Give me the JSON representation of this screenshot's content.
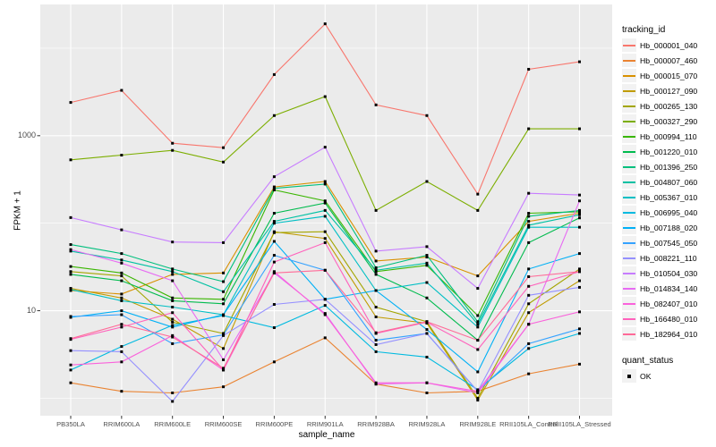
{
  "panel": {
    "fill": "#EBEBEB",
    "grid_color": "#FFFFFF",
    "tick_color": "#333333",
    "tick_text_color": "#4D4D4D"
  },
  "legend": {
    "tracking_title": "tracking_id",
    "quant_title": "quant_status",
    "quant_items": [
      {
        "label": "OK",
        "marker": "black-square",
        "color": "#000000"
      }
    ]
  },
  "chart_data": {
    "type": "line",
    "title": "",
    "xlabel": "sample_name",
    "ylabel": "FPKM + 1",
    "legend_position": "right",
    "grid": "on",
    "point_marker": {
      "shape": "square",
      "color": "#000000",
      "meaning": "quant_status = OK"
    },
    "x_categories": [
      "PB350LA",
      "RRIM600LA",
      "RRIM600LE",
      "RRIM600SE",
      "RRIM600PE",
      "RRIM901LA",
      "RRIM928BA",
      "RRIM928LA",
      "RRIM928LE",
      "RRII105LA_Control",
      "RRII105LA_Stressed"
    ],
    "y_scale": {
      "type": "log10",
      "breaks": [
        10,
        1000
      ],
      "break_labels": [
        "10",
        "1000"
      ],
      "minor_breaks": [
        1,
        100,
        10000
      ],
      "domain_log10": [
        -0.2,
        4.5
      ]
    },
    "series": [
      {
        "name": "Hb_000001_040",
        "color": "#F8766D",
        "values": [
          2400,
          3300,
          820,
          730,
          5000,
          19000,
          2250,
          1700,
          215,
          5750,
          7000
        ]
      },
      {
        "name": "Hb_000007_460",
        "color": "#EA8331",
        "values": [
          1.5,
          1.2,
          1.15,
          1.35,
          2.6,
          4.9,
          1.45,
          1.15,
          1.2,
          1.9,
          2.45
        ]
      },
      {
        "name": "Hb_000015_070",
        "color": "#D89000",
        "values": [
          17,
          15.5,
          26,
          27,
          260,
          300,
          37,
          41,
          25,
          105,
          130
        ]
      },
      {
        "name": "Hb_000127_090",
        "color": "#C09B00",
        "values": [
          18,
          14,
          8,
          3.7,
          80,
          67,
          8.5,
          7.2,
          0.95,
          9.5,
          22
        ]
      },
      {
        "name": "Hb_000265_130",
        "color": "#A3A500",
        "values": [
          28,
          25,
          7.4,
          5.5,
          78,
          80,
          11,
          7.5,
          1.0,
          12,
          30
        ]
      },
      {
        "name": "Hb_000327_290",
        "color": "#7CAE00",
        "values": [
          530,
          600,
          680,
          500,
          1700,
          2800,
          140,
          300,
          140,
          1200,
          1200
        ]
      },
      {
        "name": "Hb_000994_110",
        "color": "#39B600",
        "values": [
          32,
          27,
          14,
          13.5,
          240,
          180,
          28,
          33,
          8.8,
          130,
          135
        ]
      },
      {
        "name": "Hb_001220_010",
        "color": "#00BB4E",
        "values": [
          26,
          22,
          13,
          12,
          130,
          170,
          26,
          14,
          4.6,
          60,
          115
        ]
      },
      {
        "name": "Hb_001396_250",
        "color": "#00BF7D",
        "values": [
          57,
          45,
          30,
          21.5,
          250,
          280,
          31,
          43,
          7.5,
          120,
          140
        ]
      },
      {
        "name": "Hb_004807_060",
        "color": "#00C1A3",
        "values": [
          48,
          38,
          28,
          16.5,
          105,
          140,
          29,
          35,
          7.0,
          95,
          125
        ]
      },
      {
        "name": "Hb_005367_010",
        "color": "#00BFC4",
        "values": [
          17.5,
          13,
          11,
          9,
          100,
          120,
          17,
          21,
          6.5,
          90,
          90
        ]
      },
      {
        "name": "Hb_006995_040",
        "color": "#00BAE0",
        "values": [
          2.1,
          3.9,
          6.8,
          8.8,
          6.4,
          11.5,
          3.4,
          2.95,
          1.25,
          3.7,
          5.5
        ]
      },
      {
        "name": "Hb_007188_020",
        "color": "#00B0F6",
        "values": [
          8.4,
          10,
          6.5,
          9,
          62,
          13.5,
          17,
          6.1,
          2.0,
          30,
          45
        ]
      },
      {
        "name": "Hb_007545_050",
        "color": "#35A2FF",
        "values": [
          8.6,
          9,
          4.2,
          5.3,
          43,
          29,
          4.6,
          5.5,
          1.2,
          4.2,
          6.2
        ]
      },
      {
        "name": "Hb_008221_110",
        "color": "#9590FF",
        "values": [
          3.5,
          3.4,
          0.92,
          5.2,
          11.8,
          13.5,
          4.1,
          5.5,
          1.2,
          15,
          18.5
        ]
      },
      {
        "name": "Hb_010504_030",
        "color": "#C77CFF",
        "values": [
          116,
          84,
          61,
          60,
          340,
          740,
          48,
          54,
          18,
          220,
          210
        ]
      },
      {
        "name": "Hb_014834_140",
        "color": "#E76BF3",
        "values": [
          50,
          35,
          22,
          2.75,
          27,
          9.3,
          1.45,
          1.5,
          1.15,
          7,
          180
        ]
      },
      {
        "name": "Hb_082407_010",
        "color": "#FA62DB",
        "values": [
          2.4,
          2.6,
          5.2,
          2.1,
          28,
          9.0,
          1.5,
          1.5,
          1.2,
          7,
          9.7
        ]
      },
      {
        "name": "Hb_166480_010",
        "color": "#FF62BC",
        "values": [
          4.7,
          6.5,
          9.5,
          2.1,
          36,
          60,
          5.5,
          7.4,
          3.6,
          19,
          28
        ]
      },
      {
        "name": "Hb_182964_010",
        "color": "#FF6A98",
        "values": [
          4.8,
          7,
          5,
          2.2,
          27,
          29,
          5.6,
          7.5,
          4.6,
          24.5,
          28
        ]
      }
    ]
  }
}
